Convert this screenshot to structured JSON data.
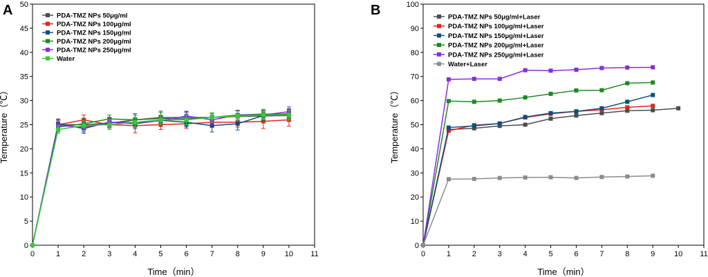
{
  "chart_data": [
    {
      "panel": "A",
      "type": "line",
      "xlabel": "Time（min）",
      "ylabel": "Temperature（℃）",
      "xlim": [
        0,
        11
      ],
      "ylim": [
        0,
        50
      ],
      "xticks": [
        0,
        1,
        2,
        3,
        4,
        5,
        6,
        7,
        8,
        9,
        10,
        11
      ],
      "yticks": [
        0,
        5,
        10,
        15,
        20,
        25,
        30,
        35,
        40,
        45,
        50
      ],
      "legend_position": "top-left",
      "x": [
        0,
        1,
        2,
        3,
        4,
        5,
        6,
        7,
        8,
        9,
        10
      ],
      "series": [
        {
          "name": "PDA-TMZ NPs 50μg/ml",
          "color": "#4d4d4d",
          "marker": "square",
          "values": [
            0,
            25.0,
            25.0,
            25.3,
            26.0,
            26.3,
            26.2,
            26.5,
            26.7,
            26.8,
            26.9
          ],
          "errors": [
            0,
            1.0,
            1.0,
            1.0,
            1.3,
            1.5,
            1.5,
            0.8,
            1.2,
            1.0,
            1.2
          ]
        },
        {
          "name": "PDA-TMZ NPs 100μg/ml",
          "color": "#e8221b",
          "marker": "square",
          "values": [
            0,
            25.0,
            26.0,
            25.0,
            24.8,
            25.0,
            25.2,
            25.5,
            25.5,
            25.7,
            26.0
          ],
          "errors": [
            0,
            1.0,
            1.0,
            1.0,
            1.5,
            1.0,
            1.0,
            1.0,
            1.0,
            1.5,
            1.3
          ]
        },
        {
          "name": "PDA-TMZ NPs 150μg/ml",
          "color": "#0b4f80",
          "marker": "square",
          "values": [
            0,
            25.2,
            24.2,
            25.5,
            25.2,
            25.9,
            25.5,
            24.8,
            25.2,
            26.9,
            27.3
          ],
          "errors": [
            0,
            1.0,
            1.0,
            1.0,
            1.0,
            1.0,
            1.0,
            1.3,
            1.3,
            1.0,
            1.0
          ]
        },
        {
          "name": "PDA-TMZ NPs 200μg/ml",
          "color": "#1d8a1d",
          "marker": "square",
          "values": [
            0,
            24.5,
            25.2,
            26.2,
            26.0,
            26.5,
            26.5,
            26.5,
            27.0,
            27.2,
            27.2
          ],
          "errors": [
            0,
            1.0,
            1.0,
            0.8,
            1.0,
            1.0,
            1.0,
            1.0,
            1.0,
            1.0,
            1.0
          ]
        },
        {
          "name": "PDA-TMZ NPs 250μg/ml",
          "color": "#8a2be2",
          "marker": "square",
          "values": [
            0,
            24.8,
            24.5,
            25.5,
            25.5,
            25.8,
            26.8,
            26.0,
            27.0,
            27.0,
            27.7
          ],
          "errors": [
            0,
            1.0,
            1.0,
            1.0,
            1.0,
            1.0,
            1.0,
            1.0,
            1.0,
            1.0,
            1.0
          ]
        },
        {
          "name": "Water",
          "color": "#33cc33",
          "marker": "square",
          "values": [
            0,
            24.0,
            24.8,
            25.0,
            25.5,
            26.0,
            26.0,
            26.5,
            26.8,
            27.0,
            27.0
          ],
          "errors": [
            0,
            0.8,
            1.0,
            1.0,
            1.0,
            1.0,
            1.0,
            1.0,
            1.0,
            1.0,
            1.0
          ]
        }
      ]
    },
    {
      "panel": "B",
      "type": "line",
      "xlabel": "Time（min）",
      "ylabel": "Temperature（℃）",
      "xlim": [
        0,
        11
      ],
      "ylim": [
        0,
        100
      ],
      "xticks": [
        0,
        1,
        2,
        3,
        4,
        5,
        6,
        7,
        8,
        9,
        10,
        11
      ],
      "yticks": [
        0,
        10,
        20,
        30,
        40,
        50,
        60,
        70,
        80,
        90,
        100
      ],
      "legend_position": "top-left",
      "series": [
        {
          "name": "PDA-TMZ NPs 50μg/ml+Laser",
          "color": "#4d4d4d",
          "marker": "square",
          "x": [
            0,
            1,
            2,
            3,
            4,
            5,
            6,
            7,
            8,
            9,
            10
          ],
          "values": [
            0,
            48.0,
            48.5,
            49.5,
            50.0,
            52.5,
            53.8,
            54.8,
            55.8,
            56.0,
            56.8
          ]
        },
        {
          "name": "PDA-TMZ NPs 100μg/ml+Laser",
          "color": "#e8221b",
          "marker": "square",
          "x": [
            0,
            1,
            2,
            3,
            4,
            5,
            6,
            7,
            8,
            9
          ],
          "values": [
            0,
            47.5,
            49.8,
            50.5,
            53.0,
            54.5,
            55.5,
            56.2,
            57.2,
            57.8
          ]
        },
        {
          "name": "PDA-TMZ NPs 150μg/ml+Laser",
          "color": "#0b4f80",
          "marker": "square",
          "x": [
            0,
            1,
            2,
            3,
            4,
            5,
            6,
            7,
            8,
            9
          ],
          "values": [
            0,
            48.8,
            49.5,
            50.5,
            53.2,
            54.8,
            55.5,
            56.8,
            59.5,
            62.3
          ]
        },
        {
          "name": "PDA-TMZ NPs 200μg/ml+Laser",
          "color": "#1d8a1d",
          "marker": "square",
          "x": [
            0,
            1,
            2,
            3,
            4,
            5,
            6,
            7,
            8,
            9
          ],
          "values": [
            0,
            59.8,
            59.5,
            60.0,
            61.3,
            62.8,
            64.2,
            64.3,
            67.2,
            67.5
          ]
        },
        {
          "name": "PDA-TMZ NPs 250μg/ml+Laser",
          "color": "#8a2be2",
          "marker": "square",
          "x": [
            0,
            1,
            2,
            3,
            4,
            5,
            6,
            7,
            8,
            9
          ],
          "values": [
            0,
            68.8,
            69.0,
            69.0,
            72.6,
            72.4,
            72.8,
            73.5,
            73.7,
            73.8
          ]
        },
        {
          "name": "Water+Laser",
          "color": "#8c8c8c",
          "marker": "square",
          "x": [
            0,
            1,
            2,
            3,
            4,
            5,
            6,
            7,
            8,
            9
          ],
          "values": [
            0,
            27.4,
            27.5,
            27.9,
            28.1,
            28.2,
            27.9,
            28.3,
            28.5,
            28.8
          ]
        }
      ]
    }
  ]
}
